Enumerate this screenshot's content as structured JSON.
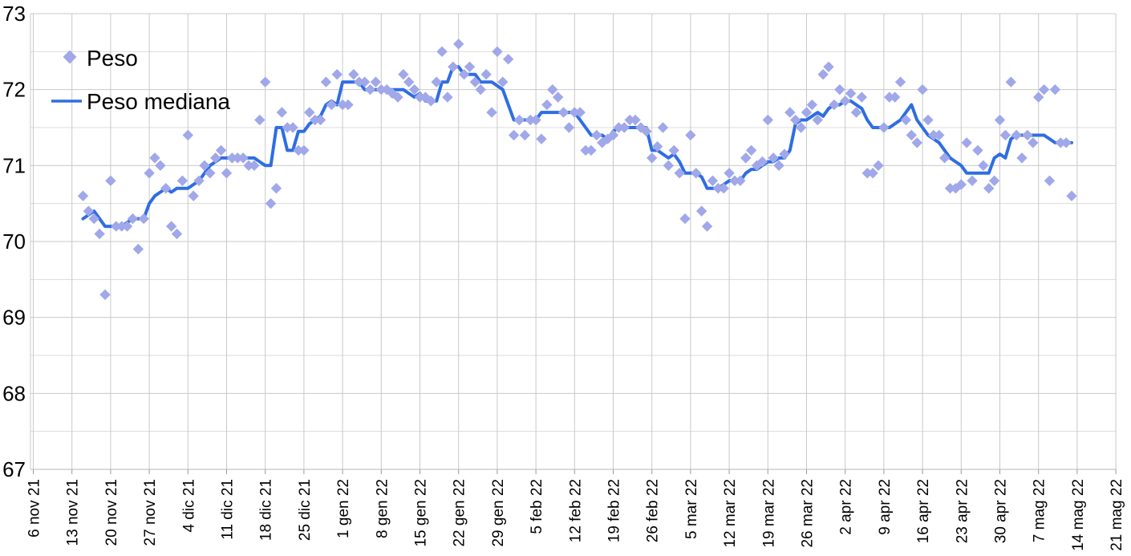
{
  "page": {
    "background": "#ffffff"
  },
  "colors": {
    "peso_marker": "#a0a8ea",
    "mediana_line": "#2f6de2",
    "gridline_major": "#c9c9c9",
    "gridline_minor": "#dcdcdc",
    "axis_line": "#b7b7b7",
    "tick_mark": "#999999",
    "text": "#000000"
  },
  "chart_data": {
    "type": "scatter",
    "title": "",
    "xlabel": "",
    "ylabel": "",
    "grid": true,
    "legend_position": "top-left-inside",
    "x": {
      "tick_labels": [
        "6 nov 21",
        "13 nov 21",
        "20 nov 21",
        "27 nov 21",
        "4 dic 21",
        "11 dic 21",
        "18 dic 21",
        "25 dic 21",
        "1 gen 22",
        "8 gen 22",
        "15 gen 22",
        "22 gen 22",
        "29 gen 22",
        "5 feb 22",
        "12 feb 22",
        "19 feb 22",
        "26 feb 22",
        "5 mar 22",
        "12 mar 22",
        "19 mar 22",
        "26 mar 22",
        "2 apr 22",
        "9 apr 22",
        "16 apr 22",
        "23 apr 22",
        "30 apr 22",
        "7 mag 22",
        "14 mag 22",
        "21 mag 22"
      ],
      "tick_interval_days": 7,
      "first_data_point_date": "15 nov 21",
      "last_data_point_date": "13 mag 22",
      "data_offset_days_from_first_tick": 9,
      "point_interval_days": 1
    },
    "y": {
      "min": 67,
      "max": 73,
      "tick_labels": [
        "73",
        "72",
        "71",
        "70",
        "69",
        "68",
        "67"
      ],
      "tick_values": [
        73,
        72,
        71,
        70,
        69,
        68,
        67
      ],
      "gridline_step": 0.5
    },
    "series": [
      {
        "name": "Peso",
        "style": "scatter-diamond",
        "color": "#a0a8ea",
        "values": [
          70.6,
          70.4,
          70.3,
          70.1,
          69.3,
          70.8,
          70.2,
          70.2,
          70.2,
          70.3,
          69.9,
          70.3,
          70.9,
          71.1,
          71.0,
          70.7,
          70.2,
          70.1,
          70.8,
          71.4,
          70.6,
          70.8,
          71.0,
          70.9,
          71.1,
          71.2,
          70.9,
          71.1,
          71.1,
          71.1,
          71.0,
          71.0,
          71.6,
          72.1,
          70.5,
          70.7,
          71.7,
          71.5,
          71.5,
          71.2,
          71.2,
          71.7,
          71.6,
          71.6,
          72.1,
          71.8,
          72.2,
          71.8,
          71.8,
          72.2,
          72.1,
          72.1,
          72.0,
          72.1,
          72.0,
          72.0,
          71.95,
          71.9,
          72.2,
          72.1,
          72.0,
          71.9,
          71.9,
          71.85,
          72.1,
          72.5,
          71.9,
          72.3,
          72.6,
          72.2,
          72.3,
          72.1,
          72.0,
          72.2,
          71.7,
          72.5,
          72.1,
          72.4,
          71.4,
          71.6,
          71.4,
          71.6,
          71.6,
          71.35,
          71.8,
          72.0,
          71.9,
          71.7,
          71.5,
          71.7,
          71.7,
          71.2,
          71.2,
          71.4,
          71.3,
          71.35,
          71.4,
          71.5,
          71.5,
          71.6,
          71.6,
          71.5,
          71.45,
          71.1,
          71.25,
          71.5,
          71.0,
          71.2,
          70.9,
          70.3,
          71.4,
          70.9,
          70.4,
          70.2,
          70.8,
          70.7,
          70.7,
          70.9,
          70.8,
          70.8,
          71.1,
          71.2,
          71.0,
          71.05,
          71.6,
          71.1,
          71.0,
          71.15,
          71.7,
          71.6,
          71.5,
          71.7,
          71.8,
          71.6,
          72.2,
          72.3,
          71.8,
          72.0,
          71.85,
          71.95,
          71.7,
          71.9,
          70.9,
          70.9,
          71.0,
          71.5,
          71.9,
          71.9,
          72.1,
          71.6,
          71.4,
          71.3,
          72.0,
          71.6,
          71.4,
          71.4,
          71.1,
          70.7,
          70.7,
          70.75,
          71.3,
          70.8,
          71.2,
          71.0,
          70.7,
          70.8,
          71.6,
          71.4,
          72.1,
          71.4,
          71.1,
          71.4,
          71.3,
          71.9,
          72.0,
          70.8,
          72.0,
          71.3,
          71.3,
          70.6
        ]
      },
      {
        "name": "Peso mediana",
        "style": "line",
        "color": "#2f6de2",
        "values": [
          70.3,
          70.35,
          70.4,
          70.3,
          70.2,
          70.2,
          70.2,
          70.2,
          70.25,
          70.3,
          70.3,
          70.3,
          70.5,
          70.6,
          70.65,
          70.7,
          70.65,
          70.7,
          70.7,
          70.7,
          70.75,
          70.8,
          70.9,
          71.0,
          71.05,
          71.1,
          71.1,
          71.1,
          71.1,
          71.1,
          71.1,
          71.1,
          71.05,
          71.0,
          71.0,
          71.5,
          71.5,
          71.2,
          71.2,
          71.45,
          71.45,
          71.55,
          71.6,
          71.65,
          71.8,
          71.85,
          71.8,
          72.1,
          72.1,
          72.1,
          72.1,
          72.0,
          72.0,
          72.0,
          72.0,
          72.0,
          72.0,
          72.0,
          72.0,
          71.95,
          71.9,
          71.95,
          71.85,
          71.85,
          71.85,
          72.1,
          72.1,
          72.3,
          72.3,
          72.2,
          72.2,
          72.2,
          72.1,
          72.1,
          72.1,
          72.05,
          72.0,
          71.8,
          71.6,
          71.6,
          71.6,
          71.6,
          71.6,
          71.7,
          71.7,
          71.7,
          71.7,
          71.7,
          71.7,
          71.7,
          71.6,
          71.5,
          71.4,
          71.4,
          71.4,
          71.35,
          71.45,
          71.5,
          71.5,
          71.5,
          71.5,
          71.5,
          71.5,
          71.2,
          71.2,
          71.15,
          71.1,
          71.15,
          71.05,
          70.9,
          70.9,
          70.9,
          70.85,
          70.7,
          70.7,
          70.7,
          70.75,
          70.8,
          70.8,
          70.8,
          70.9,
          70.95,
          70.95,
          71.0,
          71.05,
          71.05,
          71.1,
          71.1,
          71.2,
          71.55,
          71.6,
          71.6,
          71.65,
          71.7,
          71.65,
          71.75,
          71.8,
          71.8,
          71.85,
          71.85,
          71.8,
          71.75,
          71.6,
          71.5,
          71.5,
          71.5,
          71.5,
          71.55,
          71.6,
          71.7,
          71.8,
          71.6,
          71.5,
          71.4,
          71.35,
          71.3,
          71.2,
          71.1,
          71.05,
          71.0,
          70.9,
          70.9,
          70.9,
          70.9,
          70.9,
          71.1,
          71.15,
          71.1,
          71.35,
          71.4,
          71.4,
          71.4,
          71.4,
          71.4,
          71.4,
          71.35,
          71.3,
          71.3,
          71.3,
          71.3
        ]
      }
    ]
  }
}
